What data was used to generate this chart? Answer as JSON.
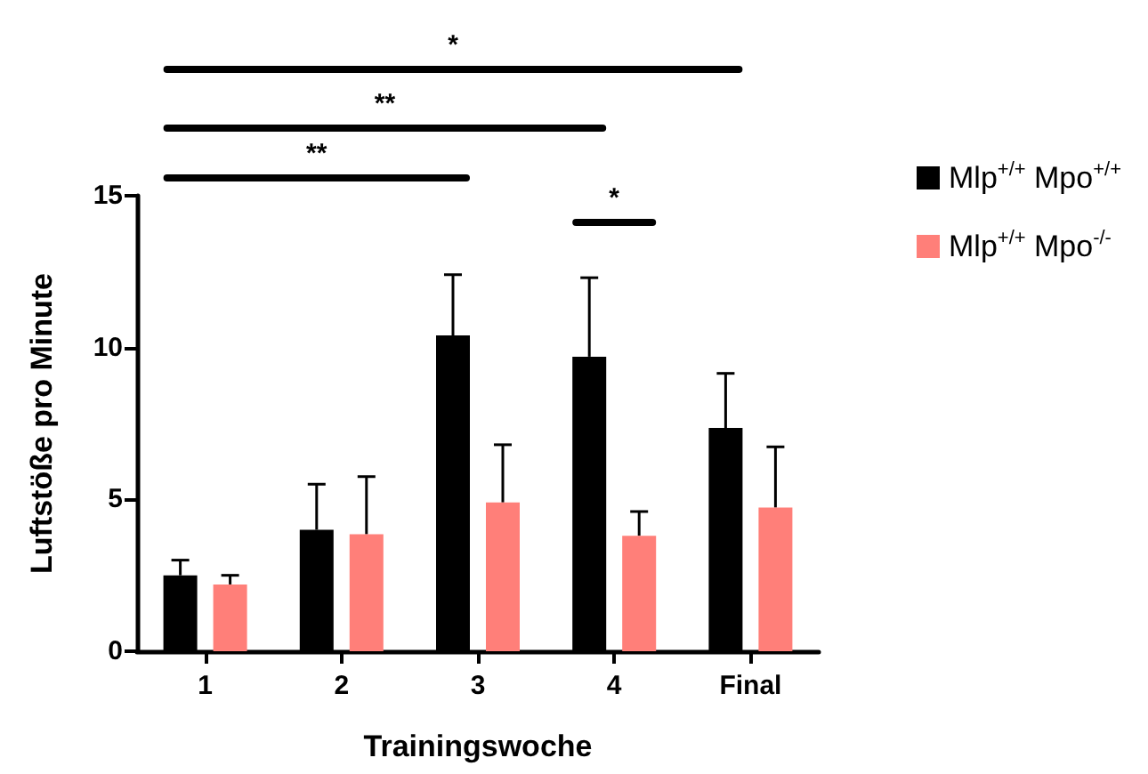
{
  "chart_data": {
    "type": "bar",
    "xlabel": "Trainingswoche",
    "ylabel": "Luftstöße pro Minute",
    "categories": [
      "1",
      "2",
      "3",
      "4",
      "Final"
    ],
    "series": [
      {
        "name": "Mlp$^{+/+}$ Mpo$^{+/+}$",
        "color": "#000000",
        "values": [
          2.5,
          4.0,
          10.4,
          9.7,
          7.35
        ],
        "errors": [
          [
            2.5,
            3.0
          ],
          [
            4.0,
            5.5
          ],
          [
            10.4,
            12.4
          ],
          [
            9.7,
            12.3
          ],
          [
            7.35,
            9.15
          ]
        ]
      },
      {
        "name": "Mlp$^{+/+}$ Mpo$^{-/-}$",
        "color": "#ff7f79",
        "values": [
          2.2,
          3.85,
          4.9,
          3.8,
          4.73
        ],
        "errors": [
          [
            2.2,
            2.5
          ],
          [
            3.85,
            5.75
          ],
          [
            4.9,
            6.8
          ],
          [
            3.8,
            4.6
          ],
          [
            4.73,
            6.73
          ]
        ]
      }
    ],
    "ylim": [
      0,
      15
    ],
    "yticks": [
      0,
      5,
      10,
      15
    ],
    "grid": false,
    "legend": "right",
    "annotations": [
      "*",
      "**",
      "**",
      "*"
    ]
  }
}
